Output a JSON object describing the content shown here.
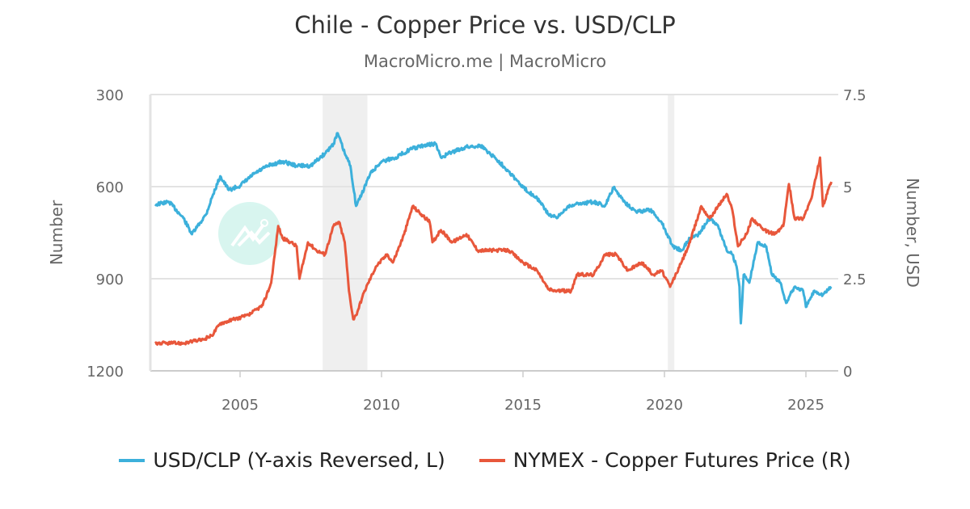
{
  "chart_data": {
    "type": "line",
    "title": "Chile - Copper Price vs. USD/CLP",
    "subtitle": "MacroMicro.me | MacroMicro",
    "watermark": "MacroMicro",
    "x_ticks": [
      "2005",
      "2010",
      "2015",
      "2020",
      "2025"
    ],
    "xlim": [
      2001.8,
      2026.2
    ],
    "left_axis": {
      "label": "Number",
      "range": [
        300,
        1200
      ],
      "reversed": true,
      "ticks": [
        "300",
        "600",
        "900",
        "1200"
      ]
    },
    "right_axis": {
      "label": "Number, USD",
      "range": [
        0,
        7.5
      ],
      "ticks": [
        "7.5",
        "5",
        "2.5",
        "0"
      ]
    },
    "grid": true,
    "legend_position": "bottom",
    "recessions": [
      [
        2007.92,
        2009.5
      ],
      [
        2020.12,
        2020.35
      ]
    ],
    "series": [
      {
        "name": "USD/CLP (Y-axis Reversed, L)",
        "axis": "left",
        "color": "#3cb0db",
        "points": [
          [
            2002.0,
            658
          ],
          [
            2002.5,
            650
          ],
          [
            2003.0,
            703
          ],
          [
            2003.3,
            755
          ],
          [
            2003.8,
            690
          ],
          [
            2004.0,
            637
          ],
          [
            2004.3,
            566
          ],
          [
            2004.6,
            611
          ],
          [
            2005.0,
            597
          ],
          [
            2005.5,
            558
          ],
          [
            2006.0,
            532
          ],
          [
            2006.5,
            518
          ],
          [
            2007.0,
            532
          ],
          [
            2007.5,
            532
          ],
          [
            2008.0,
            492
          ],
          [
            2008.3,
            460
          ],
          [
            2008.45,
            426
          ],
          [
            2008.7,
            492
          ],
          [
            2008.9,
            532
          ],
          [
            2009.1,
            663
          ],
          [
            2009.3,
            624
          ],
          [
            2009.6,
            558
          ],
          [
            2010.0,
            518
          ],
          [
            2010.5,
            505
          ],
          [
            2011.0,
            479
          ],
          [
            2011.5,
            466
          ],
          [
            2011.9,
            460
          ],
          [
            2012.1,
            505
          ],
          [
            2012.5,
            487
          ],
          [
            2013.0,
            471
          ],
          [
            2013.5,
            466
          ],
          [
            2014.0,
            505
          ],
          [
            2014.5,
            550
          ],
          [
            2015.0,
            603
          ],
          [
            2015.5,
            637
          ],
          [
            2015.9,
            690
          ],
          [
            2016.2,
            703
          ],
          [
            2016.6,
            663
          ],
          [
            2017.0,
            655
          ],
          [
            2017.5,
            650
          ],
          [
            2017.9,
            663
          ],
          [
            2018.2,
            603
          ],
          [
            2018.6,
            650
          ],
          [
            2019.0,
            682
          ],
          [
            2019.5,
            676
          ],
          [
            2019.9,
            716
          ],
          [
            2020.1,
            755
          ],
          [
            2020.3,
            795
          ],
          [
            2020.6,
            808
          ],
          [
            2020.9,
            768
          ],
          [
            2021.2,
            755
          ],
          [
            2021.6,
            703
          ],
          [
            2021.9,
            729
          ],
          [
            2022.2,
            808
          ],
          [
            2022.4,
            821
          ],
          [
            2022.55,
            860
          ],
          [
            2022.65,
            926
          ],
          [
            2022.7,
            1045
          ],
          [
            2022.8,
            887
          ],
          [
            2023.0,
            913
          ],
          [
            2023.3,
            781
          ],
          [
            2023.6,
            795
          ],
          [
            2023.8,
            887
          ],
          [
            2024.1,
            913
          ],
          [
            2024.3,
            979
          ],
          [
            2024.6,
            926
          ],
          [
            2024.9,
            939
          ],
          [
            2025.0,
            992
          ],
          [
            2025.3,
            939
          ],
          [
            2025.6,
            952
          ],
          [
            2025.9,
            926
          ]
        ]
      },
      {
        "name": "NYMEX - Copper Futures Price (R)",
        "axis": "right",
        "color": "#e8573b",
        "points": [
          [
            2002.0,
            0.75
          ],
          [
            2003.0,
            0.75
          ],
          [
            2003.7,
            0.85
          ],
          [
            2004.0,
            0.96
          ],
          [
            2004.3,
            1.29
          ],
          [
            2004.8,
            1.4
          ],
          [
            2005.3,
            1.51
          ],
          [
            2005.8,
            1.78
          ],
          [
            2006.1,
            2.39
          ],
          [
            2006.35,
            3.93
          ],
          [
            2006.5,
            3.6
          ],
          [
            2006.8,
            3.49
          ],
          [
            2007.0,
            3.38
          ],
          [
            2007.1,
            2.5
          ],
          [
            2007.4,
            3.49
          ],
          [
            2007.7,
            3.27
          ],
          [
            2008.0,
            3.16
          ],
          [
            2008.3,
            3.93
          ],
          [
            2008.5,
            4.04
          ],
          [
            2008.7,
            3.49
          ],
          [
            2008.85,
            2.17
          ],
          [
            2009.0,
            1.4
          ],
          [
            2009.1,
            1.51
          ],
          [
            2009.4,
            2.17
          ],
          [
            2009.8,
            2.83
          ],
          [
            2010.2,
            3.16
          ],
          [
            2010.4,
            2.94
          ],
          [
            2010.8,
            3.71
          ],
          [
            2011.1,
            4.47
          ],
          [
            2011.4,
            4.25
          ],
          [
            2011.7,
            4.04
          ],
          [
            2011.8,
            3.49
          ],
          [
            2012.1,
            3.82
          ],
          [
            2012.5,
            3.49
          ],
          [
            2013.0,
            3.71
          ],
          [
            2013.4,
            3.27
          ],
          [
            2014.0,
            3.27
          ],
          [
            2014.5,
            3.27
          ],
          [
            2015.0,
            2.94
          ],
          [
            2015.5,
            2.72
          ],
          [
            2015.9,
            2.21
          ],
          [
            2016.2,
            2.17
          ],
          [
            2016.7,
            2.17
          ],
          [
            2016.9,
            2.61
          ],
          [
            2017.5,
            2.61
          ],
          [
            2017.9,
            3.16
          ],
          [
            2018.3,
            3.16
          ],
          [
            2018.7,
            2.72
          ],
          [
            2019.2,
            2.94
          ],
          [
            2019.6,
            2.61
          ],
          [
            2019.9,
            2.72
          ],
          [
            2020.2,
            2.28
          ],
          [
            2020.6,
            2.94
          ],
          [
            2020.9,
            3.49
          ],
          [
            2021.3,
            4.47
          ],
          [
            2021.6,
            4.14
          ],
          [
            2021.9,
            4.47
          ],
          [
            2022.2,
            4.8
          ],
          [
            2022.4,
            4.36
          ],
          [
            2022.6,
            3.38
          ],
          [
            2022.9,
            3.71
          ],
          [
            2023.1,
            4.14
          ],
          [
            2023.5,
            3.82
          ],
          [
            2023.9,
            3.71
          ],
          [
            2024.2,
            3.93
          ],
          [
            2024.4,
            5.07
          ],
          [
            2024.6,
            4.14
          ],
          [
            2024.9,
            4.14
          ],
          [
            2025.2,
            4.69
          ],
          [
            2025.5,
            5.79
          ],
          [
            2025.6,
            4.47
          ],
          [
            2025.9,
            5.13
          ]
        ]
      }
    ]
  }
}
